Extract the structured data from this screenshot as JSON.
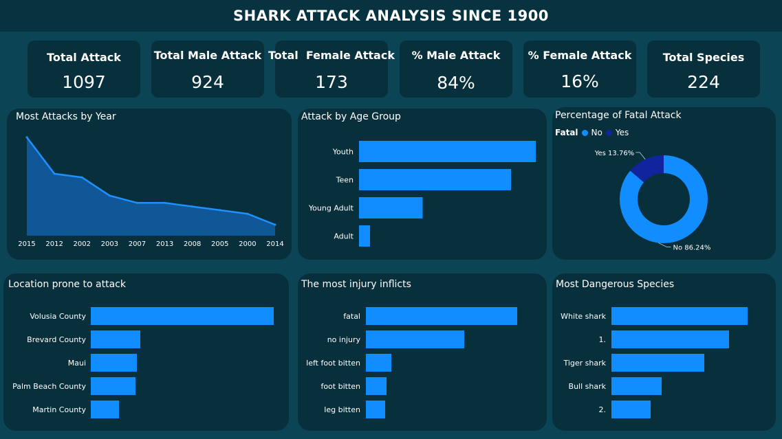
{
  "header": {
    "title": "SHARK ATTACK ANALYSIS SINCE 1900"
  },
  "kpis": [
    {
      "label": "Total Attack",
      "value": "1097"
    },
    {
      "label": "Total Male Attack",
      "value": "924"
    },
    {
      "label": "Total  Female Attack",
      "value": "173"
    },
    {
      "label": "% Male Attack",
      "value": "84%"
    },
    {
      "label": "% Female Attack",
      "value": "16%"
    },
    {
      "label": "Total Species",
      "value": "224"
    }
  ],
  "colors": {
    "bar": "#118dff",
    "area_line": "#1e90ff",
    "area_fill": "#0f5796",
    "fatal_yes": "#12239e"
  },
  "chart_data": [
    {
      "id": "year",
      "type": "area",
      "title": "Most Attacks by Year",
      "categories": [
        "2015",
        "2012",
        "2002",
        "2003",
        "2007",
        "2013",
        "2008",
        "2005",
        "2000",
        "2014"
      ],
      "values": [
        54,
        34,
        32,
        22,
        18,
        18,
        16,
        14,
        12,
        6
      ],
      "ylim": [
        0,
        60
      ]
    },
    {
      "id": "age",
      "type": "bar",
      "orientation": "horizontal",
      "title": "Attack by Age Group",
      "categories": [
        "Youth",
        "Teen",
        "Young Adult",
        "Adult"
      ],
      "values": [
        450,
        387,
        162,
        28
      ],
      "xlim": [
        0,
        450
      ]
    },
    {
      "id": "fatal",
      "type": "pie",
      "donut": true,
      "title": "Percentage of Fatal Attack",
      "legend_title": "Fatal",
      "labels": [
        "No",
        "Yes"
      ],
      "values": [
        86.24,
        13.76
      ],
      "data_labels": [
        "No 86.24%",
        "Yes 13.76%"
      ]
    },
    {
      "id": "location",
      "type": "bar",
      "orientation": "horizontal",
      "title": "Location prone to attack",
      "categories": [
        "Volusia County",
        "Brevard County",
        "Maui",
        "Palm Beach County",
        "Martin County"
      ],
      "values": [
        266,
        72,
        67,
        65,
        41
      ],
      "xlim": [
        0,
        266
      ]
    },
    {
      "id": "injury",
      "type": "bar",
      "orientation": "horizontal",
      "title": "The most injury inflicts",
      "categories": [
        "fatal",
        "no injury",
        "left foot bitten",
        "foot bitten",
        "leg bitten"
      ],
      "values": [
        220,
        143,
        37,
        30,
        28
      ],
      "xlim": [
        0,
        220
      ]
    },
    {
      "id": "species",
      "type": "bar",
      "orientation": "horizontal",
      "title": "Most Dangerous Species",
      "categories": [
        "White shark",
        "1.",
        "Tiger shark",
        "Bull shark",
        "2."
      ],
      "values": [
        198,
        171,
        135,
        73,
        57
      ],
      "xlim": [
        0,
        198
      ]
    }
  ]
}
